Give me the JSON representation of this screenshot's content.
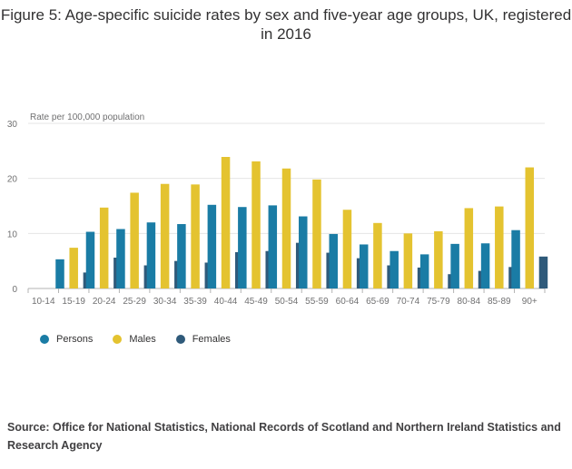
{
  "title": "Figure 5: Age-specific suicide rates by sex and five-year age groups, UK, registered in 2016",
  "source": "Source: Office for National Statistics, National Records of Scotland and Northern Ireland Statistics and Research Agency",
  "colors": {
    "Persons": "#206095",
    "Males": "#e4c330",
    "Females": "#2a5470",
    "grid": "#e5e5e5",
    "axis": "#b3b3b3"
  },
  "chart_data": {
    "type": "bar",
    "title": "Figure 5: Age-specific suicide rates by sex and five-year age groups, UK, registered in 2016",
    "ylabel": "Rate per 100,000 population",
    "xlabel": "",
    "ylim": [
      0,
      30
    ],
    "yticks": [
      0,
      10,
      20,
      30
    ],
    "grid": true,
    "legend": "bottom-left",
    "categories": [
      "10-14",
      "15-19",
      "20-24",
      "25-29",
      "30-34",
      "35-39",
      "40-44",
      "45-49",
      "50-54",
      "55-59",
      "60-64",
      "65-69",
      "70-74",
      "75-79",
      "80-84",
      "85-89",
      "90+"
    ],
    "series": [
      {
        "name": "Persons",
        "color": "#1a7ca5",
        "values": [
          0.0,
          5.3,
          10.3,
          10.8,
          12.0,
          11.7,
          15.2,
          14.8,
          15.1,
          13.1,
          9.9,
          8.0,
          6.8,
          6.2,
          8.1,
          8.2,
          10.6
        ]
      },
      {
        "name": "Males",
        "color": "#e4c330",
        "values": [
          0.0,
          7.4,
          14.7,
          17.4,
          19.0,
          18.9,
          23.9,
          23.1,
          21.8,
          19.8,
          14.3,
          11.9,
          10.0,
          10.4,
          14.6,
          14.9,
          22.0
        ]
      },
      {
        "name": "Females",
        "color": "#2f5a7a",
        "values": [
          0.0,
          2.9,
          5.6,
          4.2,
          5.0,
          4.7,
          6.6,
          6.8,
          8.3,
          6.5,
          5.5,
          4.2,
          3.8,
          2.6,
          3.2,
          3.9,
          5.8
        ]
      }
    ]
  }
}
